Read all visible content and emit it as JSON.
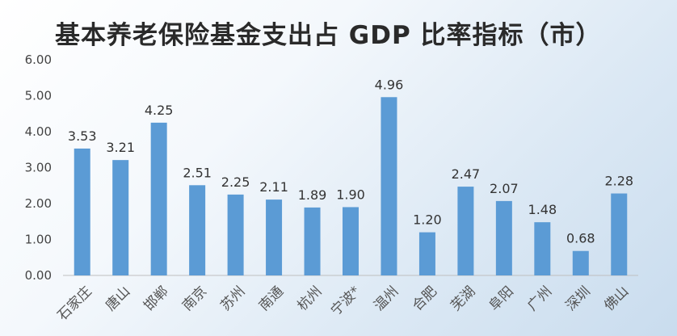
{
  "title": "基本养老保险基金支出占 GDP 比率指标（市）",
  "colors": {
    "bar": "#5b9bd5",
    "axis": "#bfbfbf"
  },
  "chart_data": {
    "type": "bar",
    "title": "基本养老保险基金支出占 GDP 比率指标（市）",
    "xlabel": "",
    "ylabel": "",
    "ylim": [
      0,
      6
    ],
    "yticks": [
      "0.00",
      "1.00",
      "2.00",
      "3.00",
      "4.00",
      "5.00",
      "6.00"
    ],
    "categories": [
      "石家庄",
      "唐山",
      "邯郸",
      "南京",
      "苏州",
      "南通",
      "杭州",
      "宁波*",
      "温州",
      "合肥",
      "芜湖",
      "阜阳",
      "广州",
      "深圳",
      "佛山"
    ],
    "values": [
      3.53,
      3.21,
      4.25,
      2.51,
      2.25,
      2.11,
      1.89,
      1.9,
      4.96,
      1.2,
      2.47,
      2.07,
      1.48,
      0.68,
      2.28
    ],
    "value_labels": [
      "3.53",
      "3.21",
      "4.25",
      "2.51",
      "2.25",
      "2.11",
      "1.89",
      "1.90",
      "4.96",
      "1.20",
      "2.47",
      "2.07",
      "1.48",
      "0.68",
      "2.28"
    ],
    "grid": false,
    "legend": "none"
  }
}
